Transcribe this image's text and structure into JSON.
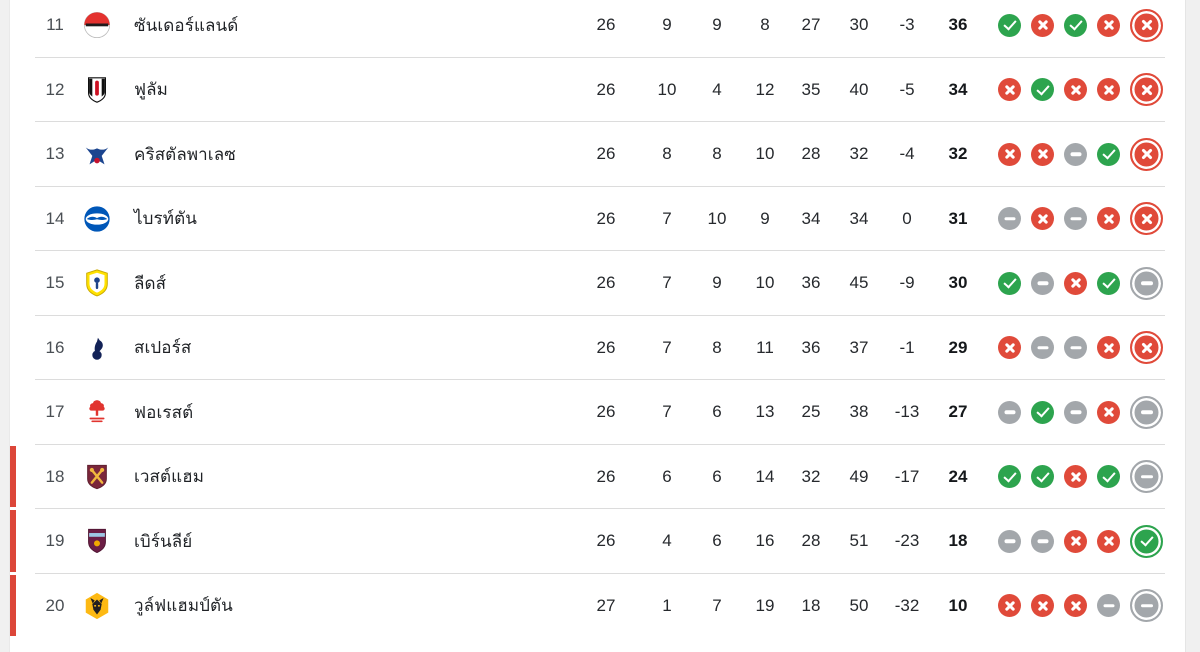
{
  "page": {
    "background_color": "#f0f0f0",
    "card_background": "#ffffff",
    "language": "th"
  },
  "colors": {
    "win": "#2da44e",
    "loss": "#e04a3a",
    "draw": "#a3a7ab",
    "relegation_bar": "#dc4639",
    "separator": "#dcdcdc"
  },
  "form_legend": {
    "W": "win",
    "L": "loss",
    "D": "draw",
    "last_item": "latest-match-highlighted"
  },
  "table": {
    "columns": [
      "position",
      "club",
      "played",
      "won",
      "drawn",
      "lost",
      "goals_for",
      "goals_against",
      "goal_diff",
      "points",
      "form"
    ],
    "rows": [
      {
        "position": "11",
        "club": "ซันเดอร์แลนด์",
        "crest": "sunderland",
        "crest_colors": [
          "#e4322f",
          "#ffffff",
          "#1f1b1c"
        ],
        "played": "26",
        "won": "9",
        "drawn": "9",
        "lost": "8",
        "gf": "27",
        "ga": "30",
        "gd": "-3",
        "points": "36",
        "form": [
          "W",
          "L",
          "W",
          "L",
          "L"
        ],
        "relegation": false
      },
      {
        "position": "12",
        "club": "ฟูลัม",
        "crest": "fulham",
        "crest_colors": [
          "#ffffff",
          "#101010",
          "#cc1022"
        ],
        "played": "26",
        "won": "10",
        "drawn": "4",
        "lost": "12",
        "gf": "35",
        "ga": "40",
        "gd": "-5",
        "points": "34",
        "form": [
          "L",
          "W",
          "L",
          "L",
          "L"
        ],
        "relegation": false
      },
      {
        "position": "13",
        "club": "คริสตัลพาเลซ",
        "crest": "palace",
        "crest_colors": [
          "#1b458f",
          "#c4122e"
        ],
        "played": "26",
        "won": "8",
        "drawn": "8",
        "lost": "10",
        "gf": "28",
        "ga": "32",
        "gd": "-4",
        "points": "32",
        "form": [
          "L",
          "L",
          "D",
          "W",
          "L"
        ],
        "relegation": false
      },
      {
        "position": "14",
        "club": "ไบรท์ตัน",
        "crest": "brighton",
        "crest_colors": [
          "#0057b8",
          "#ffffff"
        ],
        "played": "26",
        "won": "7",
        "drawn": "10",
        "lost": "9",
        "gf": "34",
        "ga": "34",
        "gd": "0",
        "points": "31",
        "form": [
          "D",
          "L",
          "D",
          "L",
          "L"
        ],
        "relegation": false
      },
      {
        "position": "15",
        "club": "ลีดส์",
        "crest": "leeds",
        "crest_colors": [
          "#ffe100",
          "#ffffff",
          "#1d428a"
        ],
        "played": "26",
        "won": "7",
        "drawn": "9",
        "lost": "10",
        "gf": "36",
        "ga": "45",
        "gd": "-9",
        "points": "30",
        "form": [
          "W",
          "D",
          "L",
          "W",
          "D"
        ],
        "relegation": false
      },
      {
        "position": "16",
        "club": "สเปอร์ส",
        "crest": "spurs",
        "crest_colors": [
          "#132257",
          "#ffffff"
        ],
        "played": "26",
        "won": "7",
        "drawn": "8",
        "lost": "11",
        "gf": "36",
        "ga": "37",
        "gd": "-1",
        "points": "29",
        "form": [
          "L",
          "D",
          "D",
          "L",
          "L"
        ],
        "relegation": false
      },
      {
        "position": "17",
        "club": "ฟอเรสต์",
        "crest": "forest",
        "crest_colors": [
          "#e1342f",
          "#ffffff"
        ],
        "played": "26",
        "won": "7",
        "drawn": "6",
        "lost": "13",
        "gf": "25",
        "ga": "38",
        "gd": "-13",
        "points": "27",
        "form": [
          "D",
          "W",
          "D",
          "L",
          "D"
        ],
        "relegation": false
      },
      {
        "position": "18",
        "club": "เวสต์แฮม",
        "crest": "westham",
        "crest_colors": [
          "#7a263a",
          "#f0b73e"
        ],
        "played": "26",
        "won": "6",
        "drawn": "6",
        "lost": "14",
        "gf": "32",
        "ga": "49",
        "gd": "-17",
        "points": "24",
        "form": [
          "W",
          "W",
          "L",
          "W",
          "D"
        ],
        "relegation": true
      },
      {
        "position": "19",
        "club": "เบิร์นลีย์",
        "crest": "burnley",
        "crest_colors": [
          "#6c1d45",
          "#9ec7e4",
          "#f2a900"
        ],
        "played": "26",
        "won": "4",
        "drawn": "6",
        "lost": "16",
        "gf": "28",
        "ga": "51",
        "gd": "-23",
        "points": "18",
        "form": [
          "D",
          "D",
          "L",
          "L",
          "W"
        ],
        "relegation": true
      },
      {
        "position": "20",
        "club": "วูล์ฟแฮมป์ตัน",
        "crest": "wolves",
        "crest_colors": [
          "#fdb913",
          "#231f20"
        ],
        "played": "27",
        "won": "1",
        "drawn": "7",
        "lost": "19",
        "gf": "18",
        "ga": "50",
        "gd": "-32",
        "points": "10",
        "form": [
          "L",
          "L",
          "L",
          "D",
          "D"
        ],
        "relegation": true
      }
    ]
  }
}
